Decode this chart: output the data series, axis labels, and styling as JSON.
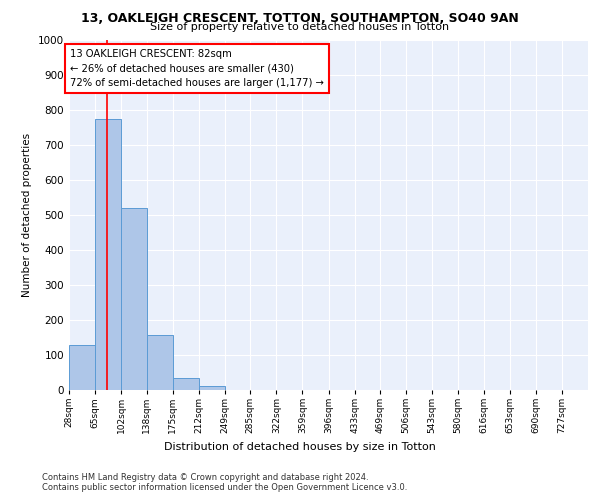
{
  "title1": "13, OAKLEIGH CRESCENT, TOTTON, SOUTHAMPTON, SO40 9AN",
  "title2": "Size of property relative to detached houses in Totton",
  "xlabel": "Distribution of detached houses by size in Totton",
  "ylabel": "Number of detached properties",
  "bar_edges": [
    28,
    65,
    102,
    138,
    175,
    212,
    249,
    285,
    322,
    359,
    396,
    433,
    469,
    506,
    543,
    580,
    616,
    653,
    690,
    727,
    764
  ],
  "bar_heights": [
    130,
    775,
    520,
    158,
    35,
    12,
    0,
    0,
    0,
    0,
    0,
    0,
    0,
    0,
    0,
    0,
    0,
    0,
    0,
    0
  ],
  "bar_color": "#aec6e8",
  "bar_edgecolor": "#5b9bd5",
  "vline_x": 82,
  "vline_color": "red",
  "annotation_text": "13 OAKLEIGH CRESCENT: 82sqm\n← 26% of detached houses are smaller (430)\n72% of semi-detached houses are larger (1,177) →",
  "annotation_box_color": "white",
  "annotation_box_edgecolor": "red",
  "ylim": [
    0,
    1000
  ],
  "yticks": [
    0,
    100,
    200,
    300,
    400,
    500,
    600,
    700,
    800,
    900,
    1000
  ],
  "background_color": "#eaf0fb",
  "grid_color": "white",
  "footer1": "Contains HM Land Registry data © Crown copyright and database right 2024.",
  "footer2": "Contains public sector information licensed under the Open Government Licence v3.0."
}
